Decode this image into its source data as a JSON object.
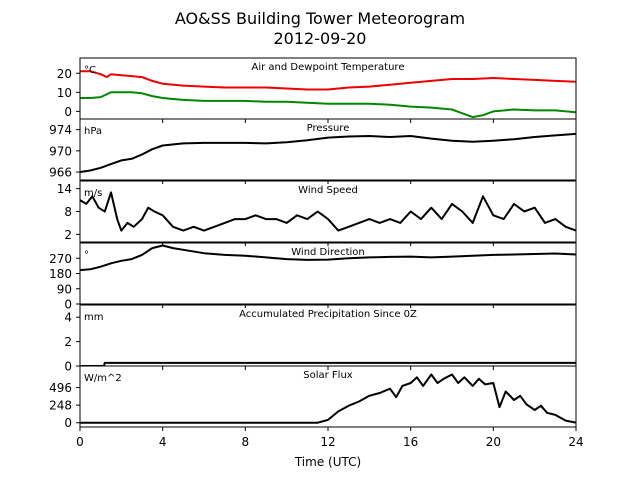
{
  "figure": {
    "title_line1": "AO&SS Building Tower Meteorogram",
    "title_line2": "2012-09-20",
    "xlabel": "Time (UTC)",
    "x_ticks": [
      "0",
      "4",
      "8",
      "12",
      "16",
      "20",
      "24"
    ]
  },
  "chart_data": [
    {
      "type": "line",
      "title": "Air and Dewpoint Temperature",
      "unit": "°C",
      "xlim": [
        0,
        24
      ],
      "ylim": [
        -4,
        28
      ],
      "yticks": [
        0,
        10,
        20
      ],
      "series": [
        {
          "color": "#ee0000",
          "x": [
            0,
            0.5,
            1,
            1.3,
            1.5,
            2,
            2.5,
            3,
            3.5,
            4,
            5,
            6,
            7,
            8,
            9,
            10,
            11,
            12,
            13,
            14,
            15,
            16,
            17,
            18,
            19,
            20,
            21,
            22,
            23,
            24
          ],
          "y": [
            21,
            21,
            19.5,
            18,
            19.5,
            19,
            18.5,
            18,
            16,
            14.5,
            13.5,
            13,
            12.5,
            12.5,
            12.5,
            12,
            11.5,
            11.5,
            12.5,
            13,
            14,
            15,
            16,
            17,
            17,
            17.5,
            17,
            16.5,
            16,
            15.5
          ]
        },
        {
          "color": "#008800",
          "x": [
            0,
            0.5,
            1,
            1.5,
            2,
            2.5,
            3,
            3.5,
            4,
            4.5,
            5,
            6,
            7,
            8,
            9,
            10,
            11,
            12,
            13,
            14,
            15,
            16,
            17,
            18,
            18.5,
            19,
            19.5,
            20,
            21,
            22,
            23,
            24
          ],
          "y": [
            7,
            7,
            7.5,
            10,
            10,
            10,
            9.5,
            8,
            7,
            6.5,
            6,
            5.5,
            5.5,
            5.5,
            5,
            5,
            4.5,
            4,
            4,
            4,
            3.5,
            2.5,
            2,
            1,
            -1,
            -3,
            -2,
            0,
            1,
            0.5,
            0.5,
            -0.5
          ]
        }
      ]
    },
    {
      "type": "line",
      "title": "Pressure",
      "unit": "hPa",
      "xlim": [
        0,
        24
      ],
      "ylim": [
        964.5,
        976
      ],
      "yticks": [
        966,
        970,
        974
      ],
      "series": [
        {
          "color": "#000000",
          "x": [
            0,
            0.5,
            1,
            1.5,
            2,
            2.5,
            3,
            3.5,
            4,
            5,
            6,
            7,
            8,
            9,
            10,
            11,
            12,
            13,
            14,
            15,
            16,
            17,
            18,
            19,
            20,
            21,
            22,
            23,
            24
          ],
          "y": [
            966,
            966.3,
            966.8,
            967.5,
            968.2,
            968.5,
            969.3,
            970.3,
            971,
            971.4,
            971.5,
            971.5,
            971.5,
            971.4,
            971.6,
            972,
            972.5,
            972.7,
            972.8,
            972.6,
            972.8,
            972.3,
            971.9,
            971.7,
            971.9,
            972.2,
            972.6,
            972.9,
            973.2
          ]
        }
      ]
    },
    {
      "type": "line",
      "title": "Wind Speed",
      "unit": "m/s",
      "xlim": [
        0,
        24
      ],
      "ylim": [
        0,
        16
      ],
      "yticks": [
        2,
        8,
        14
      ],
      "series": [
        {
          "color": "#000000",
          "x": [
            0,
            0.3,
            0.6,
            0.9,
            1.2,
            1.5,
            1.8,
            2,
            2.3,
            2.6,
            3,
            3.3,
            3.6,
            4,
            4.5,
            5,
            5.5,
            6,
            6.5,
            7,
            7.5,
            8,
            8.5,
            9,
            9.5,
            10,
            10.5,
            11,
            11.5,
            12,
            12.5,
            13,
            13.5,
            14,
            14.5,
            15,
            15.5,
            16,
            16.5,
            17,
            17.5,
            18,
            18.5,
            19,
            19.5,
            20,
            20.5,
            21,
            21.5,
            22,
            22.5,
            23,
            23.5,
            24
          ],
          "y": [
            11,
            10,
            12,
            9,
            8,
            13,
            6,
            3,
            5,
            4,
            6,
            9,
            8,
            7,
            4,
            3,
            4,
            3,
            4,
            5,
            6,
            6,
            7,
            6,
            6,
            5,
            7,
            6,
            8,
            6,
            3,
            4,
            5,
            6,
            5,
            6,
            5,
            8,
            6,
            9,
            6,
            10,
            8,
            5,
            12,
            7,
            6,
            10,
            8,
            9,
            5,
            6,
            4,
            3
          ]
        }
      ]
    },
    {
      "type": "line",
      "title": "Wind Direction",
      "unit": "°",
      "xlim": [
        0,
        24
      ],
      "ylim": [
        0,
        360
      ],
      "yticks": [
        0,
        90,
        180,
        270
      ],
      "series": [
        {
          "color": "#000000",
          "x": [
            0,
            0.5,
            1,
            1.5,
            2,
            2.5,
            3,
            3.5,
            4,
            4.5,
            5,
            6,
            7,
            8,
            9,
            10,
            11,
            12,
            13,
            14,
            15,
            16,
            17,
            18,
            19,
            20,
            21,
            22,
            23,
            24
          ],
          "y": [
            200,
            205,
            220,
            240,
            255,
            265,
            290,
            330,
            345,
            330,
            320,
            300,
            290,
            285,
            275,
            265,
            260,
            262,
            270,
            275,
            278,
            280,
            275,
            280,
            285,
            290,
            292,
            295,
            298,
            292
          ]
        }
      ]
    },
    {
      "type": "line",
      "title": "Accumulated Precipitation Since 0Z",
      "unit": "mm",
      "xlim": [
        0,
        24
      ],
      "ylim": [
        0,
        5
      ],
      "yticks": [
        0,
        2,
        4
      ],
      "series": [
        {
          "color": "#000000",
          "x": [
            0,
            1.15,
            1.2,
            24
          ],
          "y": [
            0,
            0,
            0.25,
            0.25
          ]
        }
      ]
    },
    {
      "type": "line",
      "title": "Solar Flux",
      "unit": "W/m^2",
      "xlim": [
        0,
        24
      ],
      "ylim": [
        -60,
        800
      ],
      "yticks": [
        0,
        248,
        496
      ],
      "series": [
        {
          "color": "#000000",
          "x": [
            0,
            8,
            11.5,
            12,
            12.5,
            13,
            13.5,
            14,
            14.5,
            15,
            15.3,
            15.6,
            16,
            16.3,
            16.6,
            17,
            17.3,
            17.6,
            18,
            18.3,
            18.6,
            19,
            19.3,
            19.6,
            20,
            20.3,
            20.6,
            21,
            21.3,
            21.6,
            22,
            22.3,
            22.6,
            23,
            23.5,
            24
          ],
          "y": [
            0,
            0,
            0,
            40,
            160,
            240,
            300,
            380,
            420,
            480,
            360,
            520,
            560,
            640,
            520,
            680,
            560,
            620,
            680,
            560,
            640,
            520,
            620,
            540,
            560,
            220,
            440,
            320,
            380,
            260,
            180,
            240,
            140,
            110,
            30,
            0
          ]
        }
      ]
    }
  ]
}
